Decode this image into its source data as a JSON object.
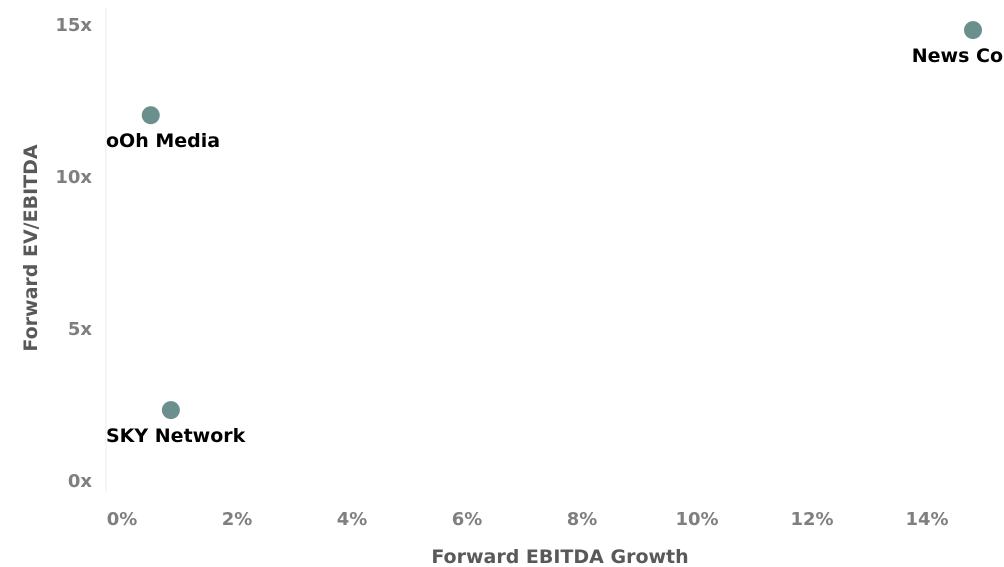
{
  "chart_data": {
    "type": "scatter",
    "title": "",
    "xlabel": "Forward EBITDA Growth",
    "ylabel": "Forward EV/EBITDA",
    "xlim": [
      0,
      15
    ],
    "ylim": [
      0,
      16
    ],
    "x_ticks": [
      {
        "value": 0,
        "label": "0%"
      },
      {
        "value": 2,
        "label": "2%"
      },
      {
        "value": 4,
        "label": "4%"
      },
      {
        "value": 6,
        "label": "6%"
      },
      {
        "value": 8,
        "label": "8%"
      },
      {
        "value": 10,
        "label": "10%"
      },
      {
        "value": 12,
        "label": "12%"
      },
      {
        "value": 14,
        "label": "14%"
      }
    ],
    "y_ticks": [
      {
        "value": 0,
        "label": "0x"
      },
      {
        "value": 5,
        "label": "5x"
      },
      {
        "value": 10,
        "label": "10x"
      },
      {
        "value": 15,
        "label": "15x"
      }
    ],
    "grid": false,
    "legend": "none",
    "point_color": "#6a8f8d",
    "points": [
      {
        "label": "News Co",
        "x": 14.8,
        "y": 14.8
      },
      {
        "label": "oOh Media",
        "x": 0.5,
        "y": 12.0
      },
      {
        "label": "SKY Network",
        "x": 0.85,
        "y": 2.3
      }
    ]
  }
}
